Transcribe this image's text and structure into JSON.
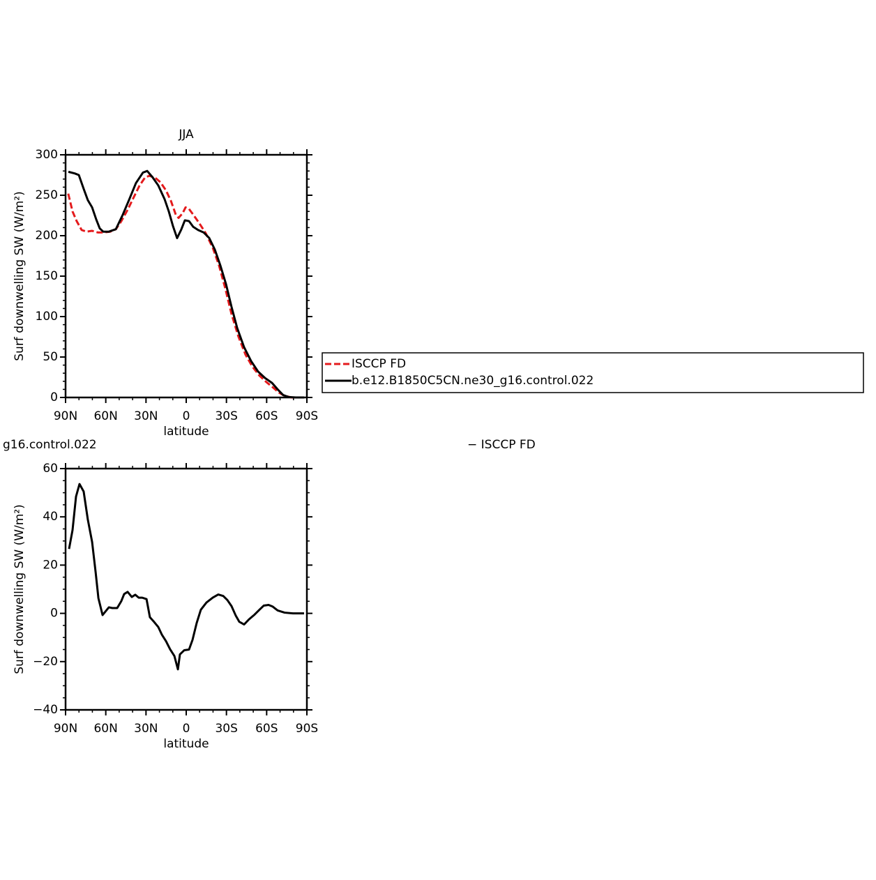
{
  "chart_data": [
    {
      "type": "line",
      "title": "JJA",
      "xlabel": "latitude",
      "ylabel": "Surf downwelling SW (W/m²)",
      "xlim": [
        90,
        -90
      ],
      "xticks": [
        {
          "value": 90,
          "label": "90N"
        },
        {
          "value": 60,
          "label": "60N"
        },
        {
          "value": 30,
          "label": "30N"
        },
        0,
        {
          "value": -30,
          "label": "30S"
        },
        {
          "value": -60,
          "label": "60S"
        },
        {
          "value": -90,
          "label": "90S"
        }
      ],
      "ylim": [
        0,
        300
      ],
      "yticks": [
        0,
        50,
        100,
        150,
        200,
        250,
        300
      ],
      "series": [
        {
          "name": "ISCCP FD",
          "color": "#e41a1c",
          "dash": true,
          "x": [
            88,
            84.8,
            81.7,
            78,
            74.4,
            70.2,
            66,
            62,
            56.7,
            52.5,
            48.4,
            43.7,
            39,
            34.8,
            30.7,
            27.6,
            23.4,
            19.2,
            15.1,
            11.4,
            7.8,
            5.7,
            2.6,
            0.5,
            -2.1,
            -5.7,
            -9.9,
            -14.6,
            -19.8,
            -24.5,
            -29.1,
            -33.8,
            -39,
            -44.2,
            -49.4,
            -54.6,
            -59.8,
            -65,
            -69.2,
            -73.4,
            -78.6,
            -88
          ],
          "values": [
            252,
            230,
            218,
            207,
            205,
            206,
            204,
            204,
            205,
            208,
            218,
            232,
            248,
            262,
            272,
            274,
            272,
            266,
            256,
            243,
            226,
            222,
            228,
            235,
            233,
            225,
            215,
            203,
            185,
            163,
            135,
            103,
            75,
            53,
            38,
            27,
            19,
            12,
            6,
            2,
            0,
            0
          ]
        },
        {
          "name": "b.e12.B1850C5CN.ne30_g16.control.022",
          "color": "#000000",
          "dash": false,
          "x": [
            87.9,
            83.2,
            80.1,
            76.5,
            73.4,
            70.2,
            67.1,
            64.5,
            61.9,
            57.7,
            52.5,
            47.3,
            42.7,
            37.5,
            32.3,
            29.1,
            25,
            20.8,
            16.1,
            13,
            9.9,
            6.8,
            3.6,
            1,
            -2.1,
            -5.2,
            -8.9,
            -13,
            -17.2,
            -21.3,
            -25.5,
            -29.7,
            -33.8,
            -38,
            -43.2,
            -48.4,
            -53.6,
            -58.8,
            -64,
            -68.2,
            -72.3,
            -76.5,
            -81.7,
            -88
          ],
          "values": [
            279,
            277,
            275,
            258,
            244,
            235,
            220,
            209,
            205,
            205,
            208,
            226,
            244,
            265,
            278,
            280,
            272,
            262,
            245,
            230,
            212,
            197,
            208,
            219,
            218,
            211,
            207,
            204,
            197,
            183,
            163,
            140,
            112,
            86,
            62,
            45,
            32,
            24,
            18,
            10,
            3,
            0.5,
            0,
            0
          ]
        }
      ]
    },
    {
      "type": "line",
      "title_left": "g16.control.022",
      "title_right": "− ISCCP FD",
      "xlabel": "latitude",
      "ylabel": "Surf downwelling SW (W/m²)",
      "xlim": [
        90,
        -90
      ],
      "xticks": [
        {
          "value": 90,
          "label": "90N"
        },
        {
          "value": 60,
          "label": "60N"
        },
        {
          "value": 30,
          "label": "30N"
        },
        0,
        {
          "value": -30,
          "label": "30S"
        },
        {
          "value": -60,
          "label": "60S"
        },
        {
          "value": -90,
          "label": "90S"
        }
      ],
      "ylim": [
        -40,
        60
      ],
      "yticks": [
        {
          "value": -40,
          "label": "−40"
        },
        {
          "value": -20,
          "label": "−20"
        },
        0,
        20,
        40,
        60
      ],
      "color": "#000000",
      "x": [
        87.4,
        84.8,
        82.2,
        79.6,
        76.5,
        73.4,
        70.2,
        67.6,
        65.5,
        62.4,
        57.7,
        55.1,
        51.5,
        48.4,
        46.3,
        43.7,
        40.6,
        38,
        35.4,
        32.8,
        29.6,
        27.1,
        23.9,
        20.8,
        18.2,
        15.1,
        12,
        8.8,
        6.2,
        4.7,
        1.5,
        -2.1,
        -4.7,
        -7.8,
        -10.9,
        -15.1,
        -19.8,
        -23.9,
        -27.6,
        -30.7,
        -33.8,
        -37,
        -39.6,
        -43.2,
        -46.8,
        -51,
        -54.6,
        -57.8,
        -61.4,
        -64.5,
        -68.2,
        -73.4,
        -79.6,
        -87.9
      ],
      "values": [
        26.7,
        34.5,
        48.4,
        53.6,
        50.5,
        38.9,
        29.6,
        17.2,
        6.3,
        -0.7,
        2.5,
        2.2,
        2.2,
        5.1,
        8,
        8.9,
        6.8,
        7.7,
        6.5,
        6.5,
        5.9,
        -1.6,
        -3.6,
        -5.7,
        -8.8,
        -11.5,
        -14.9,
        -17.7,
        -23.2,
        -17,
        -15.3,
        -15,
        -11,
        -4,
        1.5,
        4.5,
        6.5,
        7.8,
        7.2,
        5.5,
        3,
        -1,
        -3.5,
        -4.6,
        -2.5,
        -0.5,
        1.5,
        3.2,
        3.5,
        2.8,
        1.2,
        0.3,
        0,
        0
      ]
    }
  ]
}
